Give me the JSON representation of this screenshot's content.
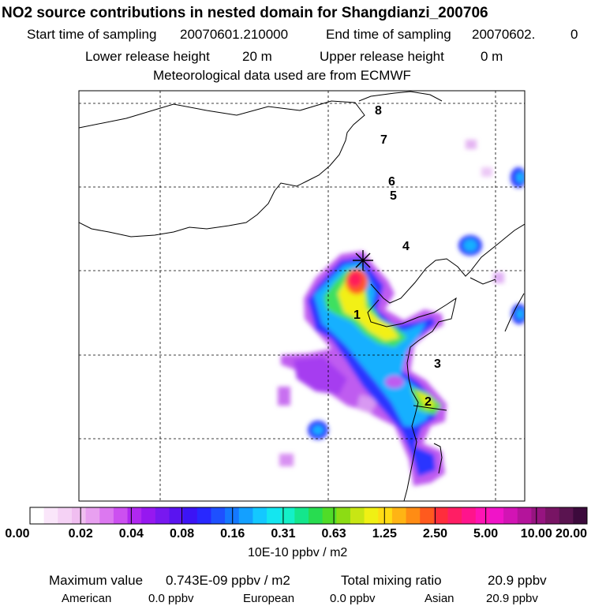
{
  "header": {
    "title": "NO2 source contributions in nested domain for Shangdianzi_200706",
    "start_label": "Start time of sampling",
    "start_value": "20070601.210000",
    "end_label": "End time of sampling",
    "end_value": "20070602.",
    "end_suffix": "0",
    "lower_label": "Lower release height",
    "lower_value": "20 m",
    "upper_label": "Upper release height",
    "upper_value": "0 m",
    "met_line": "Meteorological data used are from ECMWF"
  },
  "map": {
    "site_labels": [
      "1",
      "2",
      "3",
      "4",
      "5",
      "6",
      "7",
      "8"
    ]
  },
  "colorbar": {
    "ticks": [
      "0.00",
      "0.02",
      "0.04",
      "0.08",
      "0.16",
      "0.31",
      "0.63",
      "1.25",
      "2.50",
      "5.00",
      "10.00",
      "20.00"
    ],
    "colors": [
      "#ffffff",
      "#fae6fa",
      "#f5d2f5",
      "#f0bef0",
      "#e8a0f0",
      "#dc78f0",
      "#cc50f0",
      "#b028f0",
      "#9618f0",
      "#7818f0",
      "#5a14f0",
      "#3c14f5",
      "#2828ff",
      "#1e50ff",
      "#1478ff",
      "#14a0ff",
      "#14c8ff",
      "#14e6f0",
      "#14f0c8",
      "#14e68c",
      "#28dc50",
      "#50dc28",
      "#8cdc14",
      "#c8e614",
      "#f0f014",
      "#ffdc14",
      "#ffb414",
      "#ff8c14",
      "#ff5a1e",
      "#ff2d3c",
      "#ff1e64",
      "#ff148c",
      "#ff14b4",
      "#f014c8",
      "#d214b4",
      "#b4149b",
      "#961480",
      "#781464",
      "#5a1450",
      "#3c0a3c"
    ],
    "units": "10E-10 ppbv / m2"
  },
  "summary": {
    "max_label": "Maximum value",
    "max_value": "0.743E-09 ppbv / m2",
    "total_label": "Total mixing ratio",
    "total_value": "20.9 ppbv",
    "american_label": "American",
    "american_value": "0.0 ppbv",
    "european_label": "European",
    "european_value": "0.0 ppbv",
    "asian_label": "Asian",
    "asian_value": "20.9 ppbv"
  }
}
